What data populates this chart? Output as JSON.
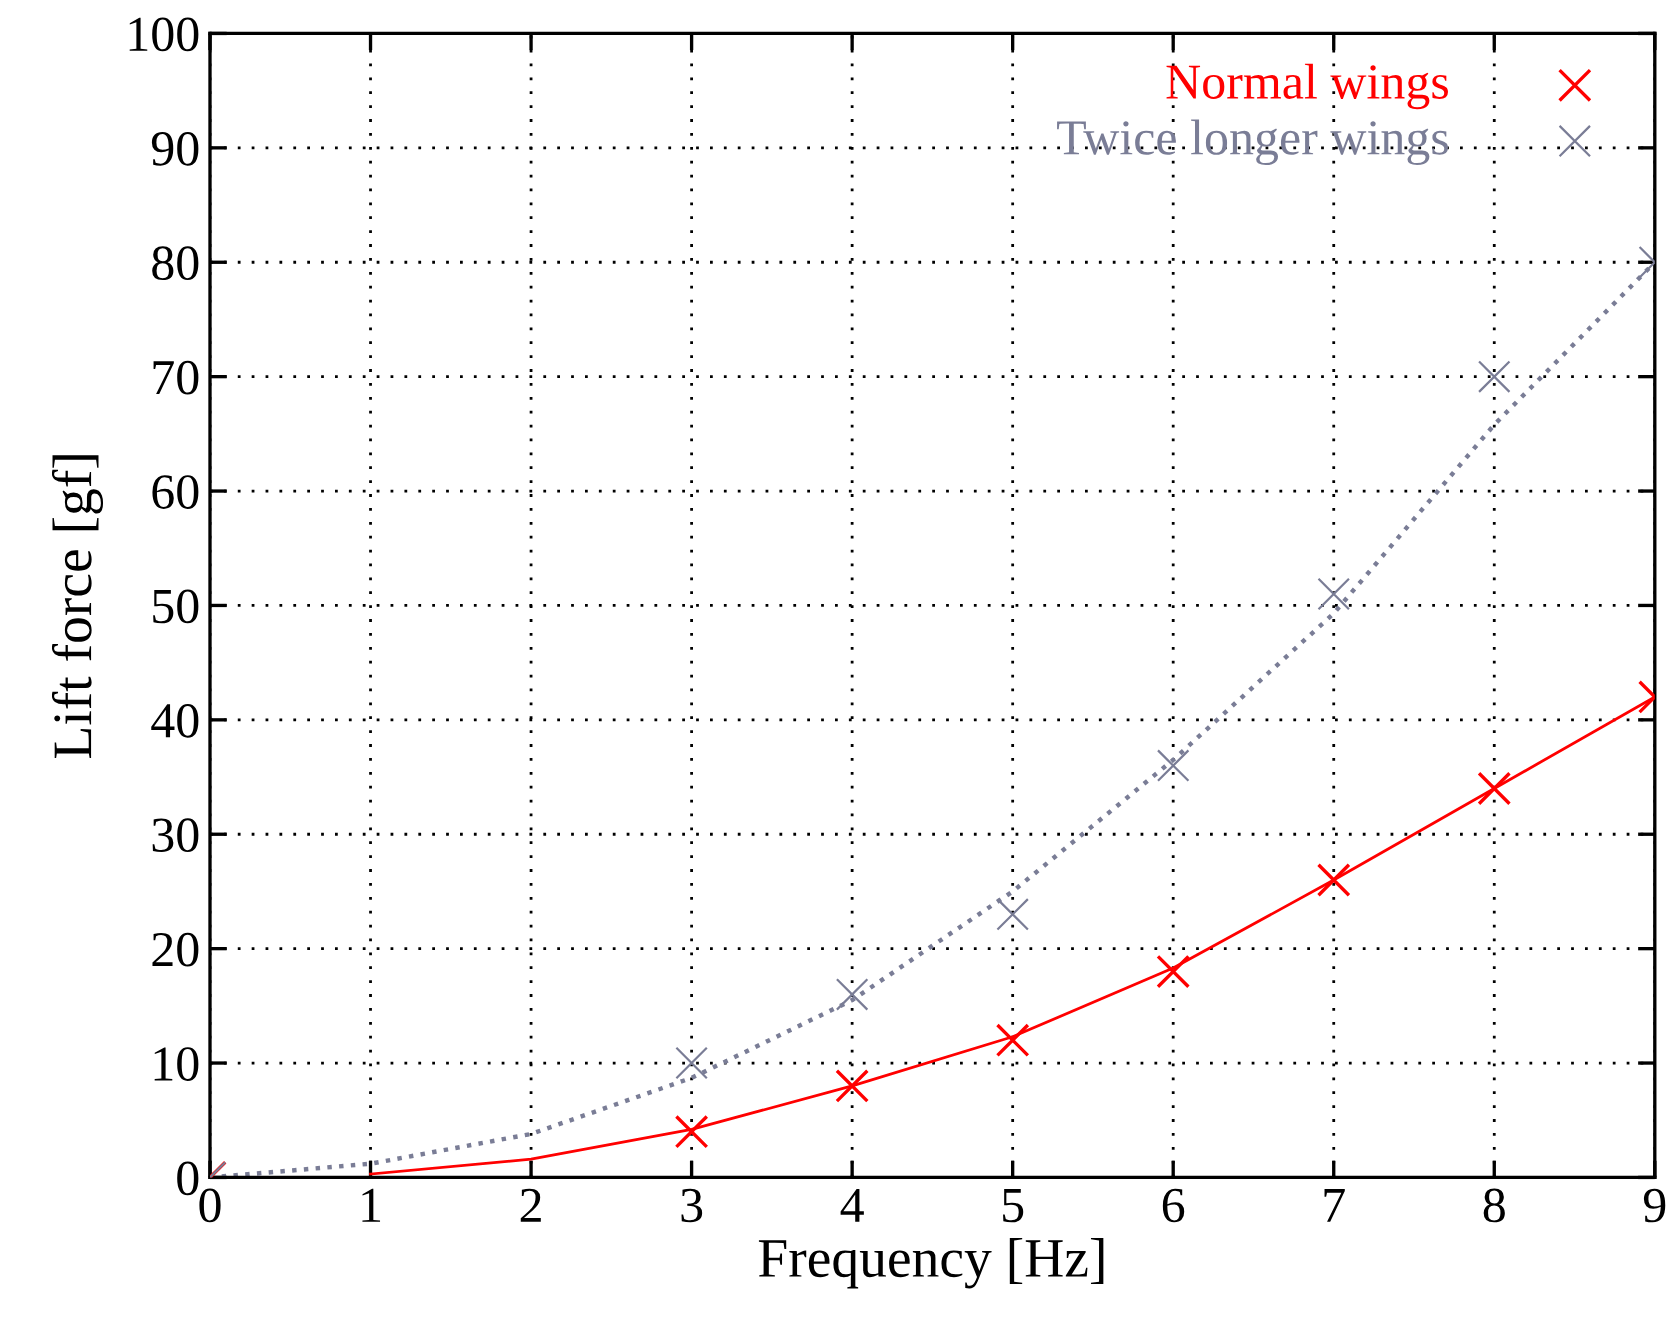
{
  "chart_data": {
    "type": "scatter",
    "xlabel": "Frequency [Hz]",
    "ylabel": "Lift force [gf]",
    "x": [
      0,
      3,
      4,
      5,
      6,
      7,
      8,
      9
    ],
    "series": [
      {
        "name": "Normal wings",
        "color": "#ff0000",
        "marker": "cross",
        "values": [
          0,
          4,
          8,
          12,
          18,
          26,
          34,
          42
        ]
      },
      {
        "name": "Twice longer wings",
        "color": "#7a7d96",
        "marker": "cross",
        "values": [
          0,
          10,
          16,
          23,
          36,
          51,
          70,
          80
        ]
      },
      {
        "type": "line",
        "color": "#ff0000",
        "line_style": "solid",
        "marker": "none",
        "x": [
          1,
          2,
          3,
          4,
          5,
          6,
          7,
          8,
          9
        ],
        "values": [
          0.3,
          1.6,
          4.2,
          8,
          12.3,
          18.3,
          26,
          34,
          42
        ]
      },
      {
        "type": "line",
        "color": "#7a7d96",
        "line_style": "dotted",
        "marker": "none",
        "x": [
          0,
          1,
          2,
          3,
          4,
          5,
          6,
          7,
          8,
          9
        ],
        "values": [
          0,
          1.2,
          3.8,
          8.7,
          15.5,
          25,
          36.5,
          49.3,
          65.8,
          80
        ]
      }
    ],
    "xlim": [
      0,
      9
    ],
    "ylim": [
      0,
      100
    ],
    "xticks": [
      0,
      1,
      2,
      3,
      4,
      5,
      6,
      7,
      8,
      9
    ],
    "yticks": [
      0,
      10,
      20,
      30,
      40,
      50,
      60,
      70,
      80,
      90,
      100
    ],
    "grid": true,
    "legend": "top right"
  }
}
